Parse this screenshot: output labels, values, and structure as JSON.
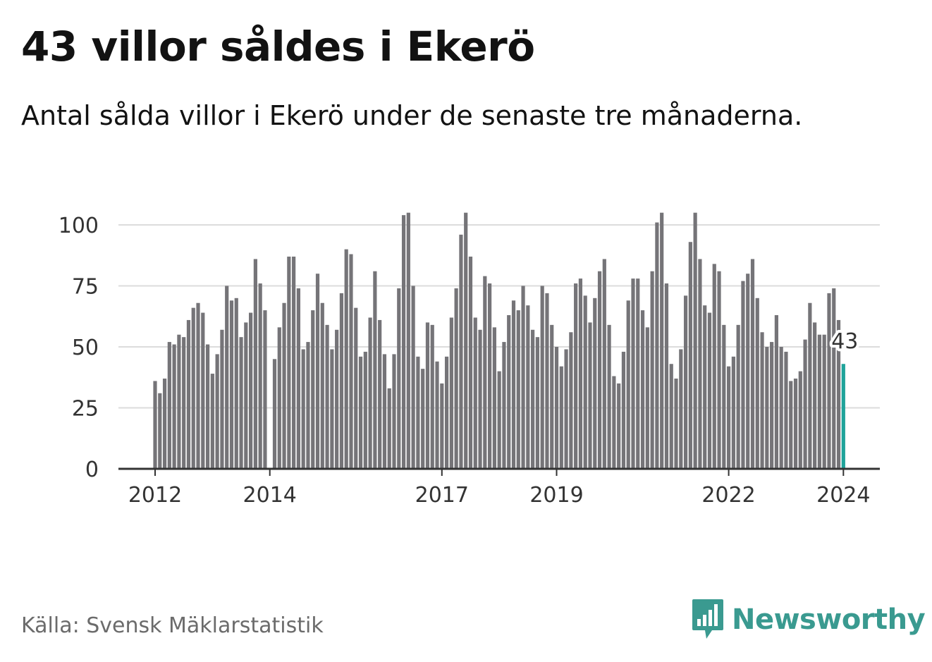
{
  "title": "43 villor såldes i Ekerö",
  "subtitle": "Antal sålda villor i Ekerö under de senaste tre månaderna.",
  "source": "Källa: Svensk Mäklarstatistik",
  "brand": {
    "name": "Newsworthy",
    "icon": "newsworthy-logo-icon"
  },
  "colors": {
    "bar": "#757478",
    "highlight": "#1fa39a",
    "grid": "#dcdcdc",
    "axis": "#333333",
    "brand": "#3a9a90"
  },
  "chart_data": {
    "type": "bar",
    "title": "43 villor såldes i Ekerö",
    "xlabel": "",
    "ylabel": "",
    "ylim": [
      0,
      105
    ],
    "y_ticks": [
      0,
      25,
      50,
      75,
      100
    ],
    "x_tick_labels": [
      {
        "label": "2012",
        "index": 0
      },
      {
        "label": "2014",
        "index": 24
      },
      {
        "label": "2017",
        "index": 60
      },
      {
        "label": "2019",
        "index": 84
      },
      {
        "label": "2022",
        "index": 120
      },
      {
        "label": "2024",
        "index": 144
      }
    ],
    "start": "2012-01",
    "end": "2024-01",
    "highlight": {
      "index": 144,
      "label": "43"
    },
    "values": [
      36,
      31,
      37,
      52,
      51,
      55,
      54,
      61,
      66,
      68,
      64,
      51,
      39,
      47,
      57,
      75,
      69,
      70,
      54,
      60,
      64,
      86,
      76,
      65,
      0,
      45,
      58,
      68,
      87,
      87,
      74,
      49,
      52,
      65,
      80,
      68,
      59,
      49,
      57,
      72,
      90,
      88,
      66,
      46,
      48,
      62,
      81,
      61,
      47,
      33,
      47,
      74,
      104,
      105,
      75,
      46,
      41,
      60,
      59,
      44,
      35,
      46,
      62,
      74,
      96,
      105,
      87,
      62,
      57,
      79,
      76,
      58,
      40,
      52,
      63,
      69,
      65,
      75,
      67,
      57,
      54,
      75,
      72,
      59,
      50,
      42,
      49,
      56,
      76,
      78,
      71,
      60,
      70,
      81,
      86,
      59,
      38,
      35,
      48,
      69,
      78,
      78,
      65,
      58,
      81,
      101,
      105,
      76,
      43,
      37,
      49,
      71,
      93,
      105,
      86,
      67,
      64,
      84,
      81,
      59,
      42,
      46,
      59,
      77,
      80,
      86,
      70,
      56,
      50,
      52,
      63,
      50,
      48,
      36,
      37,
      40,
      53,
      68,
      60,
      55,
      55,
      72,
      74,
      61,
      43
    ]
  }
}
